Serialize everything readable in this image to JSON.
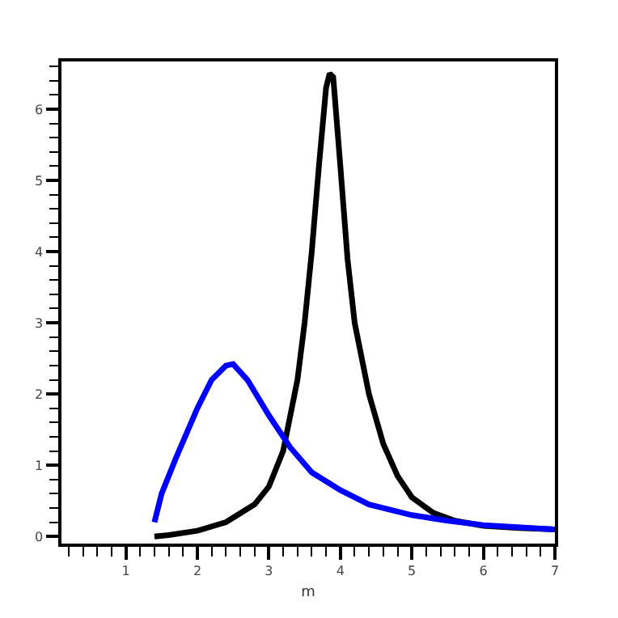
{
  "chart_data": {
    "type": "line",
    "xlabel": "m",
    "xlim": [
      0.1,
      7
    ],
    "xticks": [
      1,
      2,
      3,
      4,
      5,
      6,
      7
    ],
    "ylim": [
      -0.1,
      6.67
    ],
    "yticks": [
      0,
      1,
      2,
      3,
      4,
      5,
      6
    ],
    "grid": false,
    "marker": "none",
    "line_style": "solid",
    "series": [
      {
        "color": "#000000",
        "x": [
          1.4,
          1.6,
          2.0,
          2.4,
          2.8,
          3.0,
          3.2,
          3.4,
          3.5,
          3.6,
          3.7,
          3.8,
          3.85,
          3.9,
          4.0,
          4.1,
          4.2,
          4.4,
          4.6,
          4.8,
          5.0,
          5.3,
          5.6,
          6.0,
          6.5,
          7.0
        ],
        "values": [
          0.0,
          0.02,
          0.08,
          0.2,
          0.45,
          0.7,
          1.2,
          2.2,
          3.0,
          4.0,
          5.2,
          6.3,
          6.5,
          6.45,
          5.2,
          3.9,
          3.0,
          2.0,
          1.3,
          0.85,
          0.55,
          0.33,
          0.22,
          0.15,
          0.12,
          0.1
        ]
      },
      {
        "color": "#0000ff",
        "x": [
          1.4,
          1.5,
          1.7,
          2.0,
          2.2,
          2.4,
          2.5,
          2.7,
          3.0,
          3.3,
          3.6,
          4.0,
          4.4,
          5.0,
          5.5,
          6.0,
          7.0
        ],
        "values": [
          0.2,
          0.6,
          1.1,
          1.8,
          2.2,
          2.4,
          2.42,
          2.2,
          1.7,
          1.25,
          0.9,
          0.65,
          0.45,
          0.3,
          0.22,
          0.16,
          0.1
        ]
      }
    ]
  }
}
